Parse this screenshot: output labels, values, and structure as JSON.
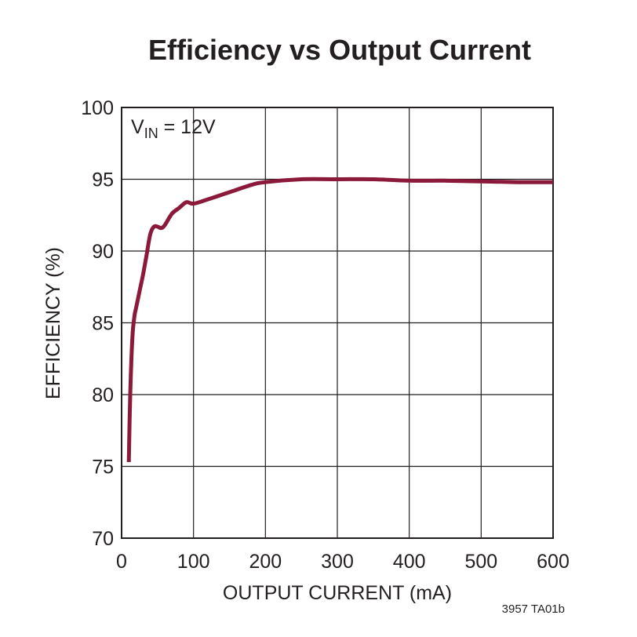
{
  "chart_data": {
    "type": "line",
    "title": "Efficiency vs Output Current",
    "xlabel": "OUTPUT CURRENT (mA)",
    "ylabel": "EFFICIENCY (%)",
    "xlim": [
      0,
      600
    ],
    "ylim": [
      70,
      100
    ],
    "xticks": [
      0,
      100,
      200,
      300,
      400,
      500,
      600
    ],
    "yticks": [
      70,
      75,
      80,
      85,
      90,
      95,
      100
    ],
    "grid": true,
    "annotation": {
      "main": "V",
      "subscript": "IN",
      "suffix": " = 12V",
      "placement": "top-left"
    },
    "footnote": "3957 TA01b",
    "series": [
      {
        "color": "#8b1a3a",
        "x": [
          10,
          12,
          15,
          18,
          20,
          25,
          30,
          35,
          40,
          45,
          50,
          55,
          60,
          70,
          80,
          90,
          100,
          120,
          150,
          180,
          200,
          250,
          300,
          350,
          400,
          450,
          500,
          550,
          600
        ],
        "y": [
          75.3,
          80.0,
          84.0,
          85.5,
          86.0,
          87.2,
          88.4,
          89.8,
          91.2,
          91.7,
          91.7,
          91.6,
          91.8,
          92.6,
          93.0,
          93.4,
          93.3,
          93.6,
          94.1,
          94.6,
          94.8,
          95.0,
          95.0,
          95.0,
          94.9,
          94.9,
          94.85,
          94.8,
          94.8
        ]
      }
    ]
  }
}
